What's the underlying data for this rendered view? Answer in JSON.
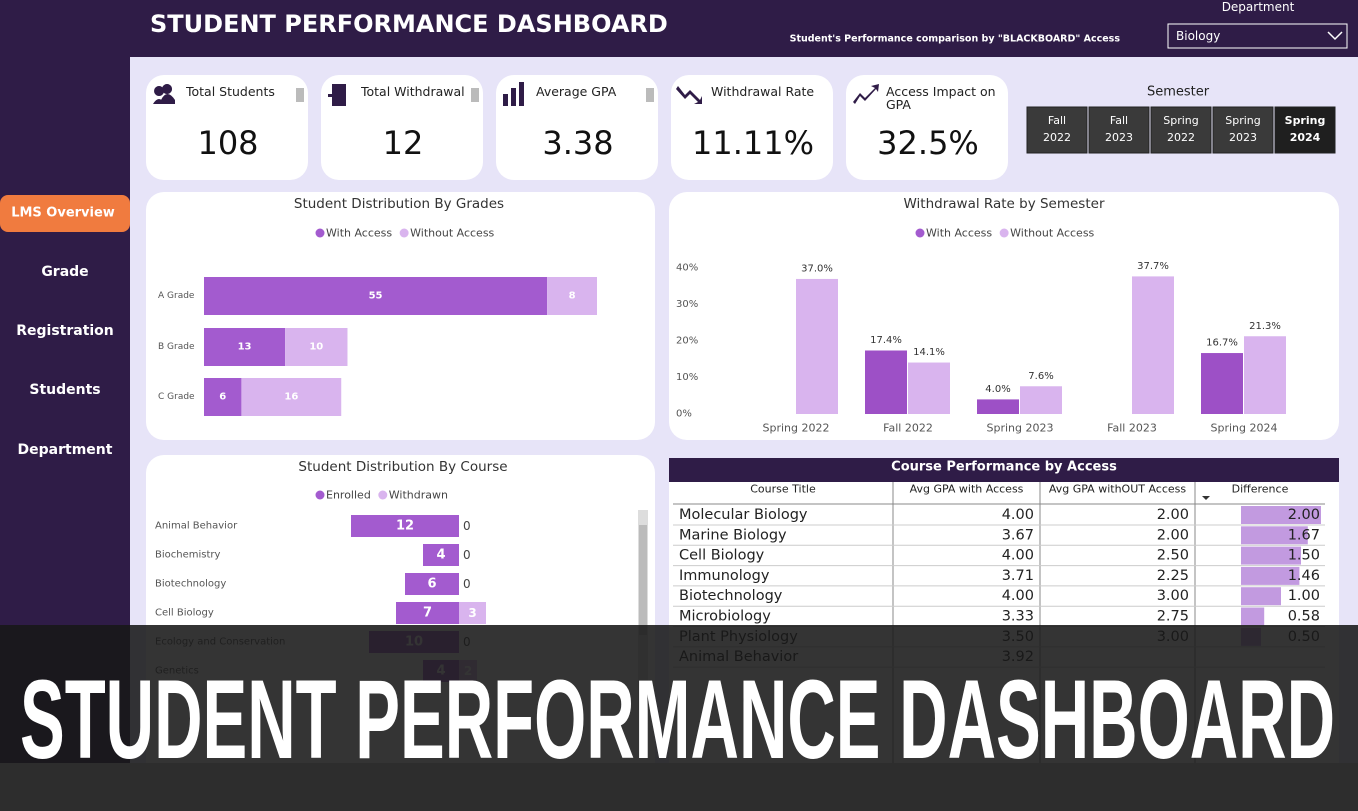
{
  "header": {
    "title": "STUDENT PERFORMANCE DASHBOARD",
    "subtitle": "Student's Performance comparison by \"BLACKBOARD\" Access",
    "filter_label": "Department",
    "filter_value": "Biology"
  },
  "nav": [
    "LMS Overview",
    "Grade",
    "Registration",
    "Students",
    "Department"
  ],
  "kpis": [
    {
      "label": "Total Students",
      "value": "108"
    },
    {
      "label": "Total Withdrawal",
      "value": "12"
    },
    {
      "label": "Average GPA",
      "value": "3.38"
    },
    {
      "label": "Withdrawal Rate",
      "value": "11.11%"
    },
    {
      "label": "Access Impact on GPA",
      "value": "32.5%"
    }
  ],
  "semester": {
    "title": "Semester",
    "options": [
      "Fall 2022",
      "Fall 2023",
      "Spring 2022",
      "Spring 2023",
      "Spring 2024"
    ],
    "selected": 4
  },
  "chart_data": [
    {
      "type": "hbar",
      "stacked": true,
      "title": "Student Distribution By Grades",
      "categories": [
        "A Grade",
        "B Grade",
        "C Grade"
      ],
      "series": [
        {
          "name": "With Access",
          "color": "#a35bcf",
          "values": [
            55,
            13,
            6
          ]
        },
        {
          "name": "Without Access",
          "color": "#d9b4ee",
          "values": [
            8,
            10,
            16
          ]
        }
      ]
    },
    {
      "type": "bar",
      "title": "Withdrawal Rate by Semester",
      "categories": [
        "Spring 2022",
        "Fall 2022",
        "Spring 2023",
        "Fall 2023",
        "Spring 2024"
      ],
      "series": [
        {
          "name": "With Access",
          "color": "#a35bcf",
          "values": [
            null,
            17.4,
            4.0,
            null,
            16.7
          ],
          "value_labels": [
            null,
            "17.4%",
            "4.0%",
            null,
            "16.7%"
          ]
        },
        {
          "name": "Without Access",
          "color": "#d9b4ee",
          "values": [
            37.0,
            14.1,
            7.6,
            37.7,
            21.3
          ],
          "value_labels": [
            "37.0%",
            "14.1%",
            "7.6%",
            "37.7%",
            "21.3%"
          ]
        }
      ],
      "ylim": [
        0,
        40
      ],
      "yticks": [
        {
          "value": 0,
          "label": "0%"
        },
        {
          "value": 10,
          "label": "10%"
        },
        {
          "value": 20,
          "label": "20%"
        },
        {
          "value": 30,
          "label": "30%"
        },
        {
          "value": 40,
          "label": "40%"
        }
      ]
    },
    {
      "type": "diverging",
      "title": "Student Distribution By Course",
      "categories": [
        "Animal Behavior",
        "Biochemistry",
        "Biotechnology",
        "Cell Biology",
        "Ecology and Conservation",
        "Genetics"
      ],
      "series": [
        {
          "name": "Enrolled",
          "color": "#a35bcf",
          "values": [
            12,
            4,
            6,
            7,
            10,
            4
          ]
        },
        {
          "name": "Withdrawn",
          "color": "#d9b4ee",
          "values": [
            0,
            0,
            0,
            3,
            0,
            2
          ]
        }
      ]
    }
  ],
  "table": {
    "title": "Course Performance by Access",
    "columns": [
      "Course Title",
      "Avg GPA with Access",
      "Avg GPA withOUT Access",
      "Difference"
    ],
    "rows": [
      [
        "Molecular Biology",
        "4.00",
        "2.00",
        {
          "value": 2.0,
          "label": "2.00"
        }
      ],
      [
        "Marine Biology",
        "3.67",
        "2.00",
        {
          "value": 1.67,
          "label": "1.67"
        }
      ],
      [
        "Cell Biology",
        "4.00",
        "2.50",
        {
          "value": 1.5,
          "label": "1.50"
        }
      ],
      [
        "Immunology",
        "3.71",
        "2.25",
        {
          "value": 1.46,
          "label": "1.46"
        }
      ],
      [
        "Biotechnology",
        "4.00",
        "3.00",
        {
          "value": 1.0,
          "label": "1.00"
        }
      ],
      [
        "Microbiology",
        "3.33",
        "2.75",
        {
          "value": 0.58,
          "label": "0.58"
        }
      ],
      [
        "Plant Physiology",
        "3.50",
        "3.00",
        {
          "value": 0.5,
          "label": "0.50"
        }
      ],
      [
        "Animal Behavior",
        "3.92",
        null,
        null
      ]
    ]
  },
  "banner": {
    "title": "STUDENT PERFORMANCE DASHBOARD"
  }
}
